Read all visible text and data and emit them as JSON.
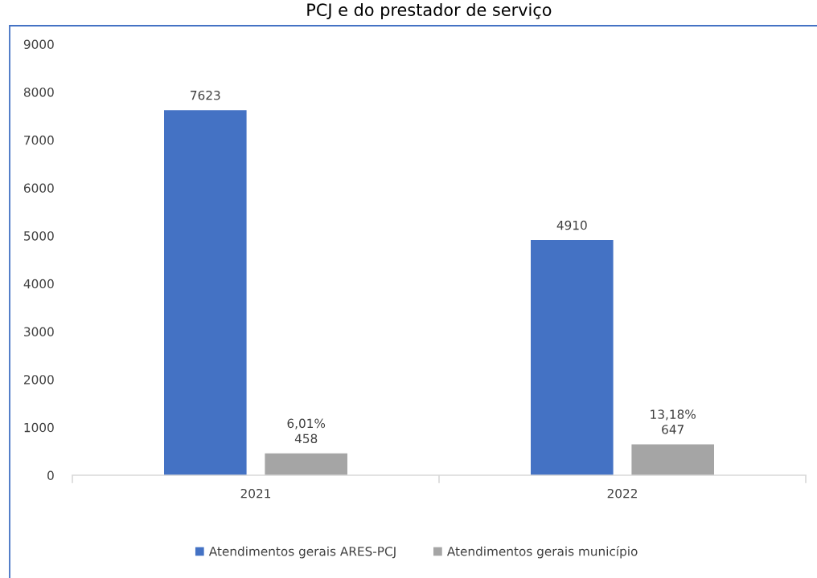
{
  "chart_data": {
    "type": "bar",
    "title": "PCJ e do prestador de serviço",
    "categories": [
      "2021",
      "2022"
    ],
    "series": [
      {
        "name": "Atendimentos gerais ARES-PCJ",
        "color": "#4472c4",
        "values": [
          7623,
          4910
        ],
        "value_labels": [
          "7623",
          "4910"
        ]
      },
      {
        "name": "Atendimentos gerais município",
        "color": "#a5a5a5",
        "values": [
          458,
          647
        ],
        "value_labels": [
          "6,01%\n458",
          "13,18%\n647"
        ]
      }
    ],
    "ylim": [
      0,
      9000
    ],
    "yticks": [
      0,
      1000,
      2000,
      3000,
      4000,
      5000,
      6000,
      7000,
      8000,
      9000
    ],
    "grid": false,
    "legend": "bottom"
  }
}
